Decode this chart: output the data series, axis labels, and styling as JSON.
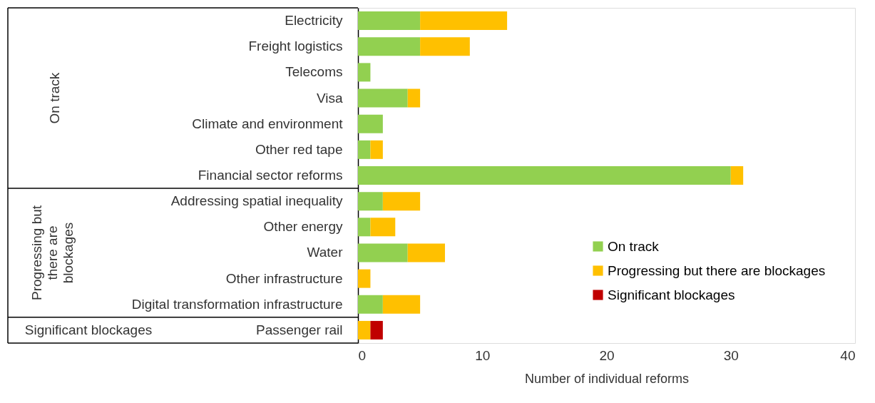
{
  "chart_data": {
    "type": "bar",
    "orientation": "horizontal",
    "stacked": true,
    "xlabel": "Number of individual reforms",
    "categories": [
      "Electricity",
      "Freight logistics",
      "Telecoms",
      "Visa",
      "Climate and environment",
      "Other red tape",
      "Financial sector reforms",
      "Addressing spatial inequality",
      "Other energy",
      "Water",
      "Other infrastructure",
      "Digital transformation infrastructure",
      "Passenger rail"
    ],
    "series": [
      {
        "name": "On track",
        "color": "#92d050",
        "values": [
          5,
          5,
          1,
          4,
          2,
          1,
          30,
          2,
          1,
          4,
          null,
          2,
          null
        ]
      },
      {
        "name": "Progressing but there are blockages",
        "color": "#ffc000",
        "values": [
          7,
          4,
          null,
          1,
          null,
          1,
          1,
          3,
          2,
          3,
          1,
          3,
          1
        ]
      },
      {
        "name": "Significant blockages",
        "color": "#c00000",
        "values": [
          null,
          null,
          null,
          null,
          null,
          null,
          null,
          null,
          null,
          null,
          null,
          null,
          1
        ]
      }
    ],
    "xlim": [
      0,
      40
    ],
    "xticks": [
      0,
      10,
      20,
      30,
      40
    ],
    "grid": false,
    "legend": "right",
    "annotations": [
      "On track",
      "Progressing but there are blockages",
      "Significant blockages"
    ]
  }
}
